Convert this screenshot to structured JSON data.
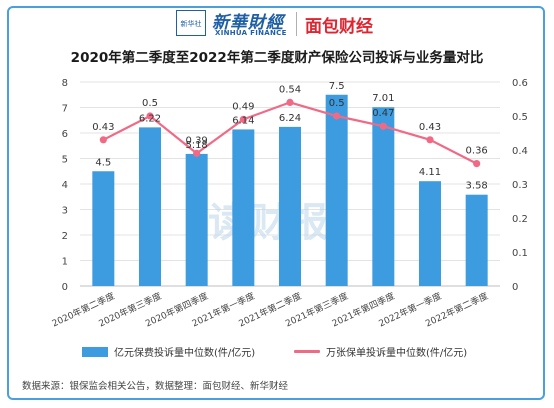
{
  "brand": {
    "xinhua_icon_text": "新华社",
    "xinhua_name": "新華財經",
    "xinhua_english": "XINHUA FINANCE",
    "partner_name": "面包财经"
  },
  "watermark": "读财报",
  "chart_data": {
    "type": "bar",
    "title": "2020年第二季度至2022年第二季度财产保险公司投诉与业务量对比",
    "categories": [
      "2020年第二季度",
      "2020年第三季度",
      "2020年第四季度",
      "2021年第一季度",
      "2021年第二季度",
      "2021年第三季度",
      "2021年第四季度",
      "2022年第一季度",
      "2022年第二季度"
    ],
    "series": [
      {
        "name": "亿元保费投诉量中位数(件/亿元)",
        "type": "bar",
        "axis": "left",
        "color": "#3d9be0",
        "values": [
          4.5,
          6.22,
          5.18,
          6.14,
          6.24,
          7.5,
          7.01,
          4.11,
          3.58
        ],
        "labels": [
          "4.5",
          "6.22",
          "5.18",
          "6.14",
          "6.24",
          "7.5",
          "7.01",
          "4.11",
          "3.58"
        ]
      },
      {
        "name": "万张保单投诉量中位数(件/亿元)",
        "type": "line",
        "axis": "right",
        "color": "#f06a86",
        "values": [
          0.43,
          0.5,
          0.39,
          0.49,
          0.54,
          0.5,
          0.47,
          0.43,
          0.36
        ],
        "labels": [
          "0.43",
          "0.5",
          "0.39",
          "0.49",
          "0.54",
          "0.5",
          "0.47",
          "0.43",
          "0.36"
        ]
      }
    ],
    "y_left": {
      "min": 0,
      "max": 8,
      "ticks": [
        "0",
        "1",
        "2",
        "3",
        "4",
        "5",
        "6",
        "7",
        "8"
      ]
    },
    "y_right": {
      "min": 0,
      "max": 0.6,
      "ticks": [
        "0",
        "0.1",
        "0.2",
        "0.3",
        "0.4",
        "0.5",
        "0.6"
      ]
    },
    "grid": true,
    "legend_position": "bottom"
  },
  "source_text": "数据来源：银保监会相关公告，数据整理：面包财经、新华财经"
}
